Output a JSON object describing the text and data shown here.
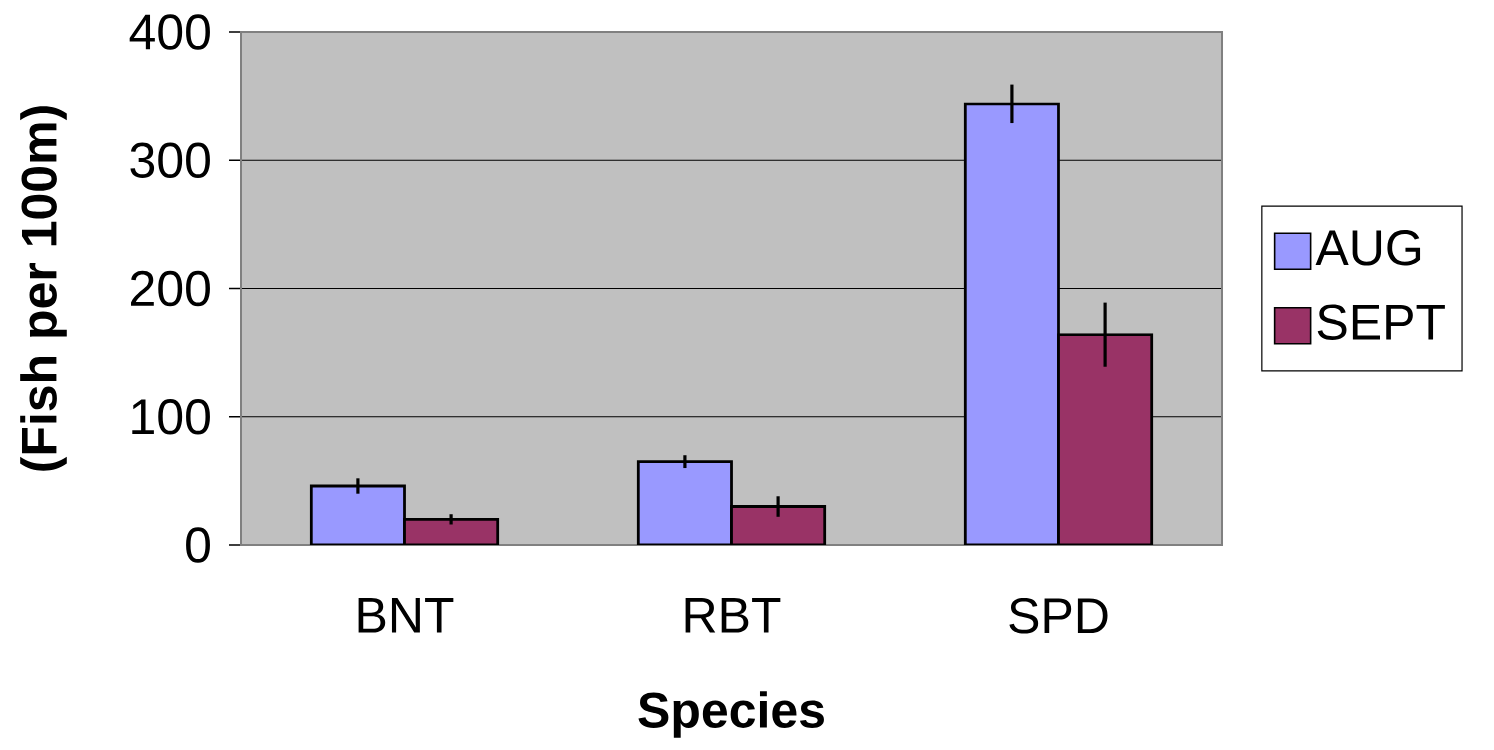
{
  "chart_data": {
    "type": "bar",
    "xlabel": "Species",
    "ylabel": "(Fish per 100m)",
    "categories": [
      "BNT",
      "RBT",
      "SPD"
    ],
    "series": [
      {
        "name": "AUG",
        "color": "#9999ff",
        "values": [
          46,
          65,
          344
        ],
        "errors": [
          6,
          5,
          15
        ]
      },
      {
        "name": "SEPT",
        "color": "#993366",
        "values": [
          20,
          30,
          164
        ],
        "errors": [
          4,
          8,
          25
        ]
      }
    ],
    "ylim": [
      0,
      400
    ],
    "yticks": [
      0,
      100,
      200,
      300,
      400
    ],
    "grid": "y",
    "legend": "right"
  }
}
